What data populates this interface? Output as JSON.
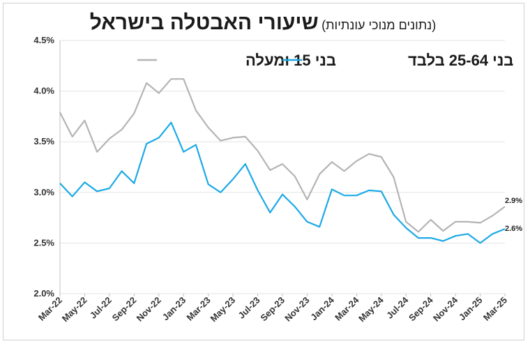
{
  "chart_data": {
    "type": "line",
    "title": "שיעורי האבטלה בישראל",
    "subtitle": "(נתונים מנוכי עונתיות)",
    "xlabel": "",
    "ylabel": "",
    "ylim": [
      2.0,
      4.5
    ],
    "yticks": [
      "4.5%",
      "4.0%",
      "3.5%",
      "3.0%",
      "2.5%",
      "2.0%"
    ],
    "ytick_values": [
      4.5,
      4.0,
      3.5,
      3.0,
      2.5,
      2.0
    ],
    "x": [
      "Mar-22",
      "Apr-22",
      "May-22",
      "Jun-22",
      "Jul-22",
      "Aug-22",
      "Sep-22",
      "Oct-22",
      "Nov-22",
      "Dec-22",
      "Jan-23",
      "Feb-23",
      "Mar-23",
      "Apr-23",
      "May-23",
      "Jun-23",
      "Jul-23",
      "Aug-23",
      "Sep-23",
      "Oct-23",
      "Nov-23",
      "Dec-23",
      "Jan-24",
      "Feb-24",
      "Mar-24",
      "Apr-24",
      "May-24",
      "Jun-24",
      "Jul-24",
      "Aug-24",
      "Sep-24",
      "Oct-24",
      "Nov-24",
      "Dec-24",
      "Jan-25",
      "Feb-25",
      "Mar-25"
    ],
    "xtick_labels": [
      "Mar-22",
      "May-22",
      "Jul-22",
      "Sep-22",
      "Nov-22",
      "Jan-23",
      "Mar-23",
      "May-23",
      "Jul-23",
      "Sep-23",
      "Nov-23",
      "Jan-24",
      "Mar-24",
      "May-24",
      "Jul-24",
      "Sep-24",
      "Nov-24",
      "Jan-25",
      "Mar-25"
    ],
    "grid": "horizontal",
    "legend_placement": "top",
    "series": [
      {
        "name": "בני 15 ומעלה",
        "color": "#b4b4b4",
        "values": [
          3.79,
          3.55,
          3.71,
          3.4,
          3.53,
          3.62,
          3.78,
          4.08,
          3.98,
          4.12,
          4.12,
          3.81,
          3.64,
          3.51,
          3.54,
          3.55,
          3.41,
          3.22,
          3.28,
          3.16,
          2.93,
          3.18,
          3.3,
          3.21,
          3.31,
          3.38,
          3.35,
          3.15,
          2.71,
          2.61,
          2.73,
          2.62,
          2.71,
          2.71,
          2.7,
          2.77,
          2.86
        ],
        "end_label": "2.9%"
      },
      {
        "name": "בני 25-64 בלבד",
        "color": "#1ca9e6",
        "values": [
          3.09,
          2.96,
          3.1,
          3.01,
          3.04,
          3.21,
          3.09,
          3.48,
          3.54,
          3.69,
          3.4,
          3.47,
          3.08,
          3.0,
          3.13,
          3.28,
          3.02,
          2.8,
          2.98,
          2.86,
          2.71,
          2.66,
          3.03,
          2.97,
          2.97,
          3.02,
          3.01,
          2.78,
          2.65,
          2.55,
          2.55,
          2.52,
          2.57,
          2.59,
          2.5,
          2.59,
          2.64
        ],
        "end_label": "2.6%"
      }
    ]
  }
}
